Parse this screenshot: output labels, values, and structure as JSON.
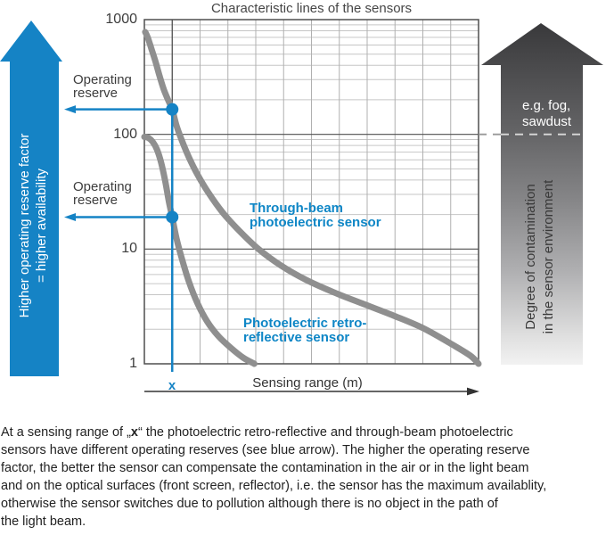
{
  "colors": {
    "blue": "#1583c5",
    "label_blue": "#0e86c6",
    "curve_gray": "#8f8f8f",
    "grid_minor": "#c6c6c6",
    "grid_vertical": "#b0b0b0",
    "grid_major": "#4f4f4f",
    "marker_gridline_dark": "#4a4a4a",
    "dashed_line_light": "#d9d9d9",
    "dashed_line_dark": "#999999",
    "axis_black": "#333333"
  },
  "chart_data": {
    "type": "line",
    "title": "Characteristic lines of the sensors",
    "xlabel": "Sensing range (m)",
    "ylabel": "",
    "y_scale": "log",
    "ylim": [
      1,
      1000
    ],
    "y_ticks": [
      "1000",
      "100",
      "10",
      "1"
    ],
    "grid": true,
    "x_axis": {
      "divisions": 12,
      "marker_division": 1,
      "marker_label": "x"
    },
    "series": [
      {
        "name": "Through-beam photoelectric sensor",
        "points": [
          [
            0.03,
            780
          ],
          [
            0.12,
            700
          ],
          [
            0.25,
            560
          ],
          [
            0.4,
            430
          ],
          [
            0.55,
            320
          ],
          [
            0.7,
            245
          ],
          [
            0.85,
            200
          ],
          [
            1.0,
            165
          ],
          [
            1.15,
            120
          ],
          [
            1.35,
            88
          ],
          [
            1.6,
            63
          ],
          [
            1.9,
            45
          ],
          [
            2.3,
            31
          ],
          [
            2.8,
            21
          ],
          [
            3.4,
            14.5
          ],
          [
            4.1,
            10
          ],
          [
            4.9,
            7.2
          ],
          [
            5.8,
            5.4
          ],
          [
            6.8,
            4.2
          ],
          [
            7.9,
            3.3
          ],
          [
            9.0,
            2.6
          ],
          [
            10.0,
            2.05
          ],
          [
            11.0,
            1.5
          ],
          [
            11.7,
            1.18
          ],
          [
            12.0,
            1.0
          ]
        ]
      },
      {
        "name": "Photoelectric retro-reflective sensor",
        "points": [
          [
            0.0,
            95
          ],
          [
            0.15,
            93
          ],
          [
            0.3,
            86
          ],
          [
            0.45,
            74
          ],
          [
            0.6,
            57
          ],
          [
            0.75,
            39
          ],
          [
            0.88,
            26
          ],
          [
            1.0,
            19
          ],
          [
            1.15,
            12.5
          ],
          [
            1.35,
            8.2
          ],
          [
            1.6,
            5.2
          ],
          [
            1.9,
            3.4
          ],
          [
            2.25,
            2.35
          ],
          [
            2.65,
            1.75
          ],
          [
            3.1,
            1.38
          ],
          [
            3.55,
            1.13
          ],
          [
            3.95,
            1.0
          ]
        ]
      }
    ],
    "operating_reserve_markers": [
      {
        "x_division": 1,
        "value": 165
      },
      {
        "x_division": 1,
        "value": 19
      }
    ],
    "contamination_reference_value": 100
  },
  "annotations": {
    "operating_reserve_label": "Operating reserve"
  },
  "left_arrow": {
    "line1": "Higher operating reserve factor",
    "line2": "= higher availability"
  },
  "right_arrow": {
    "caption_line1": "e.g. fog,",
    "caption_line2": "sawdust",
    "label_line1": "Degree of contamination",
    "label_line2": "in the sensor environment"
  },
  "paragraph": {
    "line1_before_x": "At a sensing range of „",
    "line1_x": "x",
    "line1_after_x": "“ the photoelectric retro-reflective and through-beam photoelectric",
    "line2": "sensors have different operating reserves (see blue arrow). The higher the operating reserve",
    "line3": "factor, the better the sensor can compensate the contamination in the air or in the light beam",
    "line4": "and on the optical surfaces (front screen, reflector), i.e. the sensor has the maximum availablity,",
    "line5": "otherwise the sensor switches due to pollution although there is no object in the path of",
    "line6": "the light beam."
  }
}
